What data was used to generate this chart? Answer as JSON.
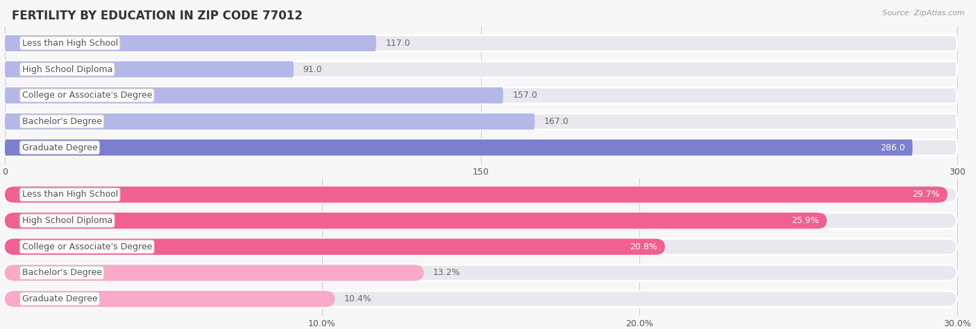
{
  "title": "FERTILITY BY EDUCATION IN ZIP CODE 77012",
  "source": "Source: ZipAtlas.com",
  "chart1": {
    "categories": [
      "Less than High School",
      "High School Diploma",
      "College or Associate's Degree",
      "Bachelor's Degree",
      "Graduate Degree"
    ],
    "values": [
      117.0,
      91.0,
      157.0,
      167.0,
      286.0
    ],
    "bar_colors": [
      "#b3b8e8",
      "#b3b8e8",
      "#b3b8e8",
      "#b3b8e8",
      "#7b7fcc"
    ],
    "xlim": [
      0,
      300
    ],
    "xticks": [
      0.0,
      150.0,
      300.0
    ],
    "bar_height": 0.62
  },
  "chart2": {
    "categories": [
      "Less than High School",
      "High School Diploma",
      "College or Associate's Degree",
      "Bachelor's Degree",
      "Graduate Degree"
    ],
    "values": [
      29.7,
      25.9,
      20.8,
      13.2,
      10.4
    ],
    "bar_colors": [
      "#f06090",
      "#f06090",
      "#f06090",
      "#f9aac8",
      "#f9aac8"
    ],
    "xlim": [
      0,
      30
    ],
    "xticks": [
      10.0,
      20.0,
      30.0
    ],
    "xtick_labels": [
      "10.0%",
      "20.0%",
      "30.0%"
    ],
    "bar_height": 0.62
  },
  "label_color": "#555555",
  "value_color_inside": "#ffffff",
  "value_color_outside": "#666666",
  "background_color": "#f7f7f7",
  "bar_bg_color": "#e8e8ee",
  "title_fontsize": 12,
  "label_fontsize": 9,
  "value_fontsize": 9,
  "tick_fontsize": 9
}
